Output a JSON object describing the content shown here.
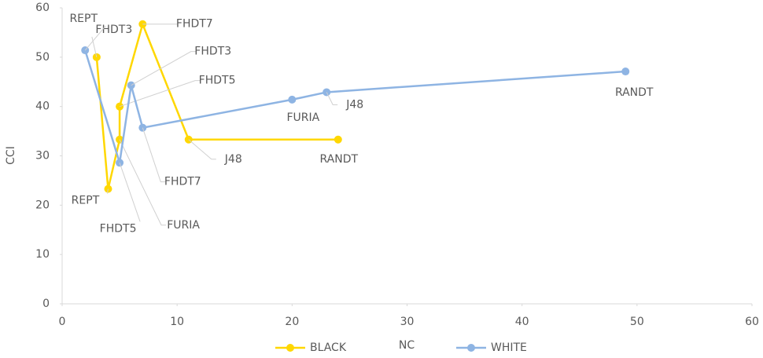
{
  "chart_data": {
    "type": "line",
    "x_label": "NC",
    "y_label": "CCI",
    "xlim": [
      0,
      60
    ],
    "xticks": [
      0,
      10,
      20,
      30,
      40,
      50,
      60
    ],
    "ylim": [
      0,
      60
    ],
    "yticks": [
      0,
      10,
      20,
      30,
      40,
      50,
      60
    ],
    "series": [
      {
        "name": "BLACK",
        "color": "#ffd700",
        "x": [
          3,
          4,
          5,
          5,
          7,
          11,
          24
        ],
        "values": [
          50,
          23.3,
          33.3,
          40,
          56.7,
          33.3,
          33.3
        ],
        "point_labels": [
          "FHDT3",
          "REPT",
          "FURIA",
          "FHDT5",
          "FHDT7",
          "J48",
          "RANDT"
        ]
      },
      {
        "name": "WHITE",
        "color": "#8eb4e3",
        "x": [
          2,
          5,
          6,
          7,
          20,
          23,
          49
        ],
        "values": [
          51.4,
          28.6,
          44.3,
          35.7,
          41.4,
          42.9,
          47.1
        ],
        "point_labels": [
          "REPT",
          "FHDT5",
          "FHDT3",
          "FHDT7",
          "FURIA",
          "J48",
          "RANDT"
        ]
      }
    ]
  }
}
